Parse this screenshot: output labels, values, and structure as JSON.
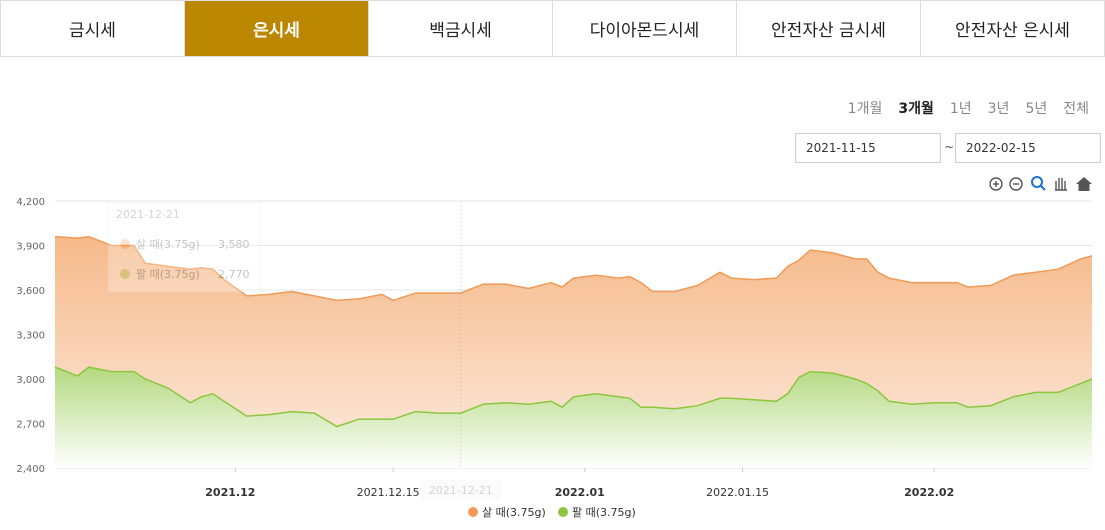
{
  "tabs": [
    "금시세",
    "은시세",
    "백금시세",
    "다이아몬드시세",
    "안전자산 금시세",
    "안전자산 은시세"
  ],
  "active_tab": 1,
  "periods": [
    "1개월",
    "3개월",
    "1년",
    "3년",
    "5년",
    "전체"
  ],
  "active_period": 1,
  "date_from": "2021-11-15",
  "date_separator": "~",
  "date_to": "2022-02-15",
  "tooltip": {
    "date": "2021-12-21",
    "rows": [
      {
        "series": 0,
        "value": "3,580"
      },
      {
        "series": 1,
        "value": "2,770"
      }
    ]
  },
  "chart_data": {
    "type": "area",
    "x": [
      "2021-11-15",
      "2021-11-17",
      "2021-11-18",
      "2021-11-20",
      "2021-11-22",
      "2021-11-23",
      "2021-11-25",
      "2021-11-27",
      "2021-11-28",
      "2021-11-29",
      "2021-11-30",
      "2021-12-02",
      "2021-12-04",
      "2021-12-06",
      "2021-12-08",
      "2021-12-10",
      "2021-12-12",
      "2021-12-14",
      "2021-12-15",
      "2021-12-17",
      "2021-12-19",
      "2021-12-21",
      "2021-12-23",
      "2021-12-25",
      "2021-12-27",
      "2021-12-29",
      "2021-12-30",
      "2021-12-31",
      "2022-01-02",
      "2022-01-04",
      "2022-01-05",
      "2022-01-06",
      "2022-01-07",
      "2022-01-09",
      "2022-01-11",
      "2022-01-13",
      "2022-01-14",
      "2022-01-16",
      "2022-01-18",
      "2022-01-19",
      "2022-01-20",
      "2022-01-21",
      "2022-01-23",
      "2022-01-25",
      "2022-01-26",
      "2022-01-27",
      "2022-01-28",
      "2022-01-30",
      "2022-02-01",
      "2022-02-03",
      "2022-02-04",
      "2022-02-06",
      "2022-02-08",
      "2022-02-10",
      "2022-02-12",
      "2022-02-14",
      "2022-02-15"
    ],
    "series": [
      {
        "name": "살 때(3.75g)",
        "color": "#f09a55",
        "values": [
          3960,
          3950,
          3960,
          3900,
          3900,
          3780,
          3760,
          3740,
          3750,
          3740,
          3670,
          3560,
          3570,
          3590,
          3560,
          3530,
          3540,
          3570,
          3530,
          3580,
          3580,
          3580,
          3640,
          3640,
          3610,
          3650,
          3620,
          3680,
          3700,
          3680,
          3690,
          3650,
          3590,
          3590,
          3630,
          3720,
          3680,
          3670,
          3680,
          3760,
          3800,
          3870,
          3850,
          3810,
          3810,
          3720,
          3680,
          3650,
          3650,
          3650,
          3620,
          3630,
          3700,
          3720,
          3740,
          3810,
          3830
        ]
      },
      {
        "name": "팔 때(3.75g)",
        "color": "#8cc63f",
        "values": [
          3080,
          3020,
          3080,
          3050,
          3050,
          3000,
          2940,
          2840,
          2880,
          2900,
          2850,
          2750,
          2760,
          2780,
          2770,
          2680,
          2730,
          2730,
          2730,
          2780,
          2770,
          2770,
          2830,
          2840,
          2830,
          2850,
          2810,
          2880,
          2900,
          2880,
          2870,
          2810,
          2810,
          2800,
          2820,
          2870,
          2870,
          2860,
          2850,
          2900,
          3010,
          3050,
          3040,
          3000,
          2970,
          2920,
          2850,
          2830,
          2840,
          2840,
          2810,
          2820,
          2880,
          2910,
          2910,
          2970,
          3000
        ]
      }
    ],
    "xlim": [
      "2021-11-15",
      "2022-02-15"
    ],
    "xticks": [
      {
        "value": "2021-12-01",
        "label": "2021.12"
      },
      {
        "value": "2021-12-15",
        "label": "2021.12.15"
      },
      {
        "value": "2022-01-01",
        "label": "2022.01"
      },
      {
        "value": "2022-01-15",
        "label": "2022.01.15"
      },
      {
        "value": "2022-02-01",
        "label": "2022.02"
      }
    ],
    "ylim": [
      2400,
      4200
    ],
    "yticks": [
      {
        "value": 2400,
        "label": "2,400"
      },
      {
        "value": 2700,
        "label": "2,700"
      },
      {
        "value": 3000,
        "label": "3,000"
      },
      {
        "value": 3300,
        "label": "3,300"
      },
      {
        "value": 3600,
        "label": "3,600"
      },
      {
        "value": 3900,
        "label": "3,900"
      },
      {
        "value": 4200,
        "label": "4,200"
      }
    ],
    "grid": true,
    "legend": "bottom"
  }
}
